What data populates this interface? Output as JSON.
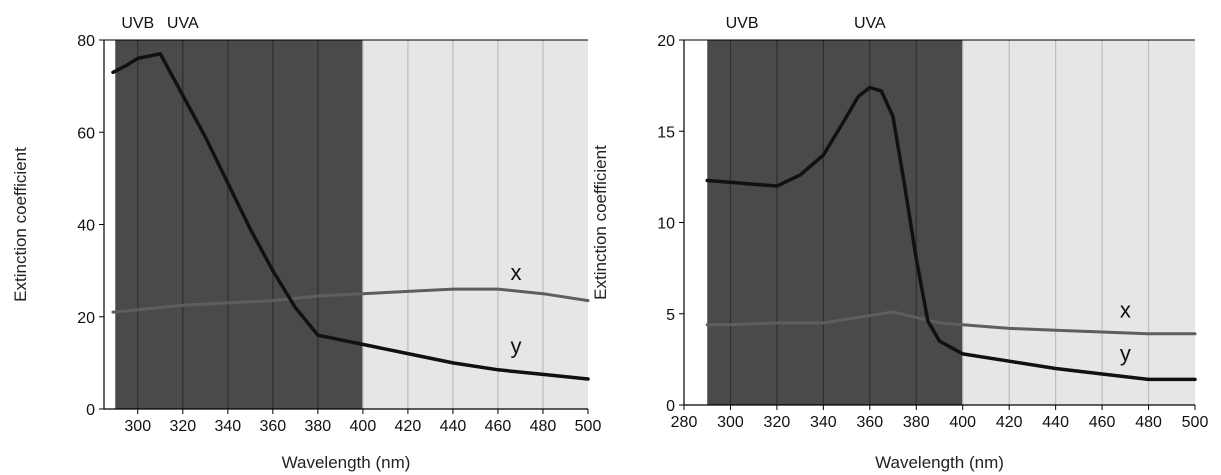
{
  "colors": {
    "uv_region": "#4a4a4a",
    "visible_region": "#e6e6e6",
    "grid_dark": "#2e2e2e",
    "grid_light": "#bdbdbd",
    "series_x": "#5e5e5e",
    "series_y": "#111111"
  },
  "chart_data": [
    {
      "type": "line",
      "xlabel": "Wavelength (nm)",
      "ylabel": "Extinction coefficient",
      "xlim": [
        285,
        500
      ],
      "ylim": [
        0,
        80
      ],
      "xticks": [
        300,
        320,
        340,
        360,
        380,
        400,
        420,
        440,
        460,
        480,
        500
      ],
      "yticks": [
        0,
        20,
        40,
        60,
        80
      ],
      "grid": true,
      "regions": [
        {
          "label": "",
          "from": 290,
          "to": 400,
          "shade": "uv"
        },
        {
          "label": "",
          "from": 400,
          "to": 500,
          "shade": "visible"
        }
      ],
      "region_labels": [
        {
          "text": "UVB",
          "x": 300
        },
        {
          "text": "UVA",
          "x": 320
        }
      ],
      "series": [
        {
          "name": "x",
          "label_x": 468,
          "label_y": 28,
          "x": [
            289,
            300,
            320,
            340,
            360,
            380,
            400,
            420,
            440,
            460,
            480,
            500
          ],
          "y": [
            21,
            21.5,
            22.5,
            23,
            23.5,
            24.5,
            25,
            25.5,
            26,
            26,
            25,
            23.5
          ]
        },
        {
          "name": "y",
          "label_x": 468,
          "label_y": 12,
          "x": [
            289,
            295,
            300,
            310,
            320,
            330,
            340,
            350,
            360,
            370,
            380,
            390,
            400,
            420,
            440,
            460,
            480,
            500
          ],
          "y": [
            73,
            74.5,
            76,
            77,
            68,
            59,
            49,
            39,
            30,
            22,
            16,
            15,
            14,
            12,
            10,
            8.5,
            7.5,
            6.5
          ]
        }
      ]
    },
    {
      "type": "line",
      "xlabel": "Wavelength (nm)",
      "ylabel": "Extinction coefficient",
      "xlim": [
        280,
        500
      ],
      "ylim": [
        0,
        20
      ],
      "xticks": [
        280,
        300,
        320,
        340,
        360,
        380,
        400,
        420,
        440,
        460,
        480,
        500
      ],
      "yticks": [
        0,
        5,
        10,
        15,
        20
      ],
      "grid": true,
      "regions": [
        {
          "label": "",
          "from": 290,
          "to": 400,
          "shade": "uv"
        },
        {
          "label": "",
          "from": 400,
          "to": 500,
          "shade": "visible"
        }
      ],
      "region_labels": [
        {
          "text": "UVB",
          "x": 305
        },
        {
          "text": "UVA",
          "x": 360
        }
      ],
      "series": [
        {
          "name": "x",
          "label_x": 470,
          "label_y": 4.8,
          "x": [
            290,
            300,
            320,
            340,
            350,
            360,
            370,
            380,
            390,
            400,
            420,
            440,
            460,
            480,
            500
          ],
          "y": [
            4.4,
            4.4,
            4.5,
            4.5,
            4.7,
            4.9,
            5.1,
            4.8,
            4.5,
            4.4,
            4.2,
            4.1,
            4.0,
            3.9,
            3.9
          ]
        },
        {
          "name": "y",
          "label_x": 470,
          "label_y": 2.4,
          "x": [
            290,
            300,
            310,
            320,
            330,
            340,
            350,
            355,
            360,
            365,
            370,
            375,
            380,
            385,
            390,
            400,
            420,
            440,
            460,
            480,
            500
          ],
          "y": [
            12.3,
            12.2,
            12.1,
            12.0,
            12.6,
            13.7,
            15.8,
            16.9,
            17.4,
            17.2,
            15.8,
            12.0,
            8.0,
            4.6,
            3.5,
            2.8,
            2.4,
            2.0,
            1.7,
            1.4,
            1.4
          ]
        }
      ]
    }
  ]
}
